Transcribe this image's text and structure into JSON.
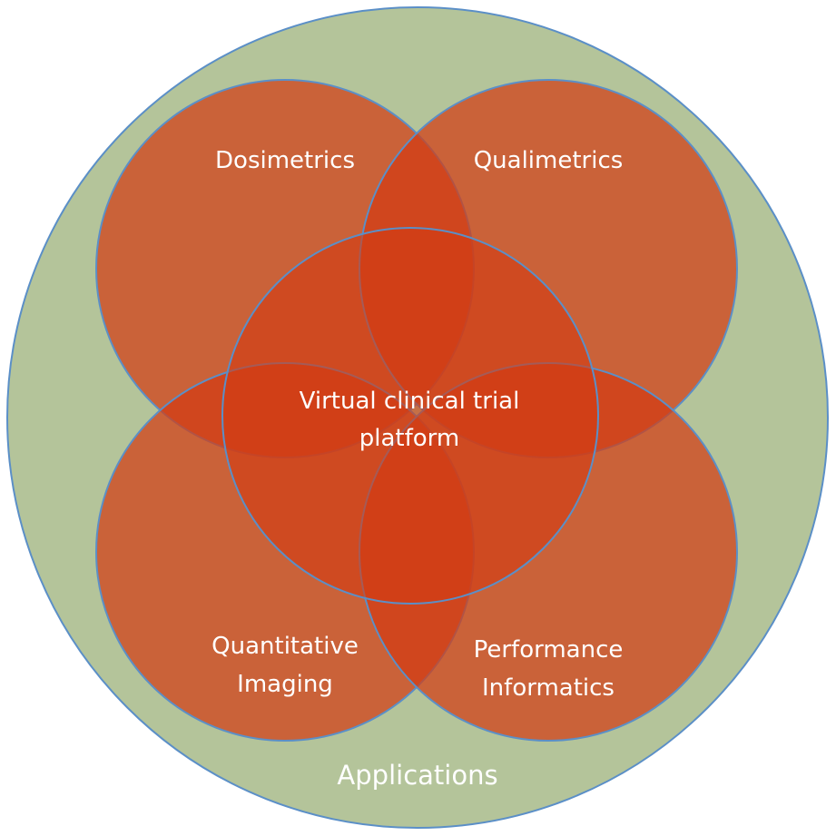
{
  "diagram": {
    "outer_label": "Applications",
    "center_label": {
      "line1": "Virtual clinical trial",
      "line2": "platform"
    },
    "top_left_label": "Dosimetrics",
    "top_right_label": "Qualimetrics",
    "bottom_left_label": {
      "line1": "Quantitative",
      "line2": "Imaging"
    },
    "bottom_right_label": {
      "line1": "Performance",
      "line2": "Informatics"
    }
  },
  "colors": {
    "outer_fill": "#b4c49a",
    "outer_stroke": "#5b8fc7",
    "circle_fill": "#d23c14",
    "circle_stroke": "#5b8fc7",
    "text": "#ffffff"
  }
}
